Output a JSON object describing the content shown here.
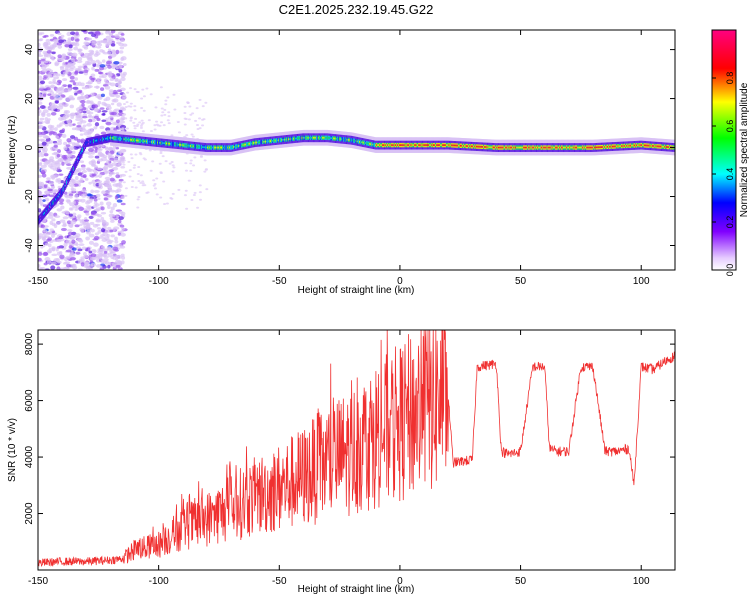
{
  "figure": {
    "title": "C2E1.2025.232.19.45.G22"
  },
  "chart_data": [
    {
      "type": "heatmap",
      "xlabel": "Height of straight line (km)",
      "ylabel": "Frequency (Hz)",
      "xlim": [
        -150,
        114
      ],
      "ylim": [
        -50,
        48
      ],
      "x_ticks": [
        -150,
        -100,
        -50,
        0,
        50,
        100
      ],
      "y_ticks": [
        -40,
        -20,
        0,
        20,
        40
      ],
      "colorbar": {
        "label": "Normalized spectral amplitude",
        "ticks": [
          0.0,
          0.2,
          0.4,
          0.6,
          0.8
        ],
        "tick_labels": [
          "0.0",
          "0.2",
          "0.4",
          "0.6",
          "0.8"
        ],
        "range": [
          0,
          1
        ]
      },
      "ridge_frequency": {
        "x": [
          -150,
          -140,
          -130,
          -120,
          -110,
          -100,
          -90,
          -80,
          -70,
          -60,
          -50,
          -40,
          -30,
          -20,
          -10,
          0,
          20,
          40,
          60,
          80,
          100,
          114
        ],
        "y": [
          -30,
          -18,
          2,
          4,
          3,
          2,
          1,
          0,
          0,
          2,
          3,
          4,
          4,
          3,
          1,
          1,
          1,
          0,
          0,
          0,
          1,
          0
        ]
      },
      "grid": false
    },
    {
      "type": "line",
      "xlabel": "Height of straight line (km)",
      "ylabel": "SNR (10 * v/v)",
      "xlim": [
        -150,
        114
      ],
      "ylim": [
        0,
        8500
      ],
      "x_ticks": [
        -150,
        -100,
        -50,
        0,
        50,
        100
      ],
      "y_ticks": [
        2000,
        4000,
        6000,
        8000
      ],
      "color": "#f03030",
      "series": [
        {
          "x": [
            -150,
            -140,
            -130,
            -120,
            -115,
            -110,
            -100,
            -90,
            -80,
            -70,
            -60,
            -50,
            -40,
            -30,
            -20,
            -10,
            0,
            10,
            20,
            22,
            30,
            32,
            40,
            42,
            45,
            50,
            55,
            60,
            62,
            65,
            70,
            75,
            80,
            85,
            90,
            95,
            97,
            100,
            105,
            110,
            114
          ],
          "y": [
            250,
            300,
            300,
            350,
            400,
            700,
            900,
            1500,
            1800,
            2200,
            2600,
            2900,
            3300,
            3800,
            4200,
            4800,
            5200,
            5800,
            6200,
            3800,
            3900,
            7200,
            7300,
            4200,
            4100,
            4200,
            7200,
            7200,
            4300,
            4200,
            4200,
            7200,
            7200,
            4200,
            4200,
            4300,
            3000,
            7200,
            7100,
            7400,
            7600
          ]
        }
      ],
      "grid": false
    }
  ]
}
